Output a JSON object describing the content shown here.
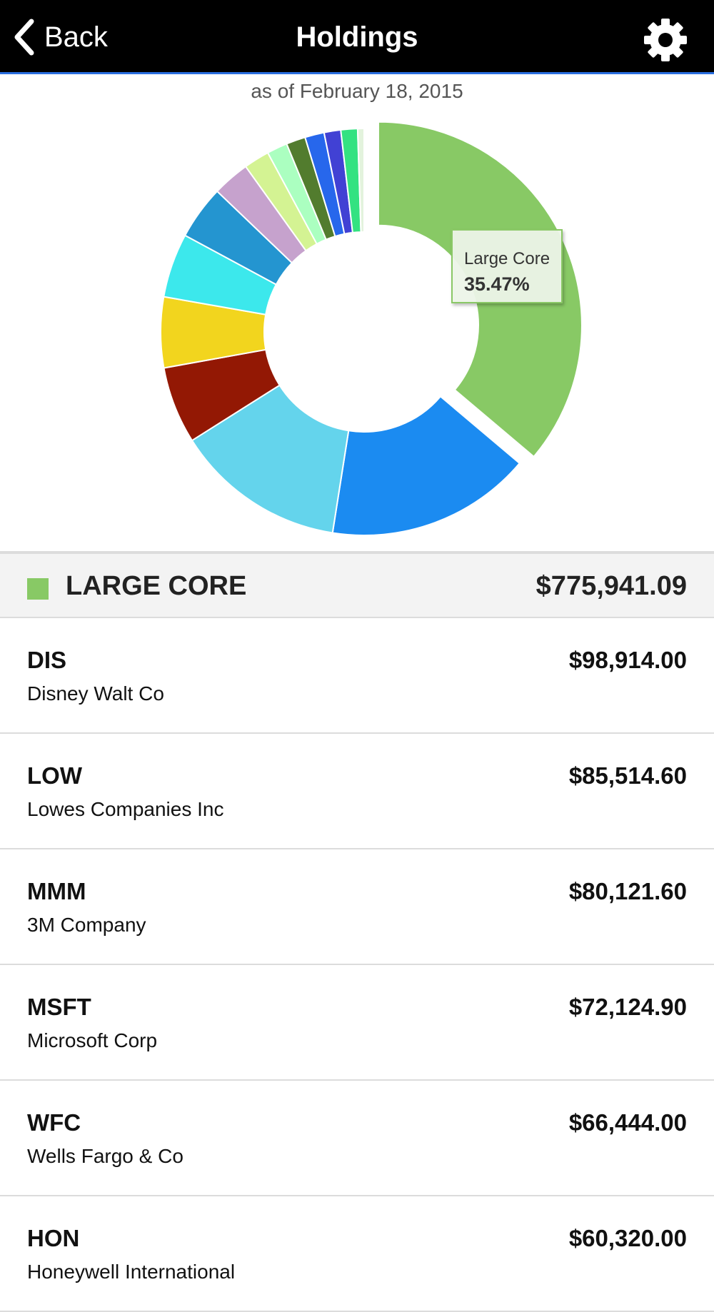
{
  "header": {
    "back_label": "Back",
    "title": "Holdings"
  },
  "as_of": "as of February 18, 2015",
  "tooltip": {
    "label": "Large Core",
    "value": "35.47%"
  },
  "chart_data": {
    "type": "pie",
    "values": [
      35.47,
      16.0,
      13.3,
      6.0,
      5.5,
      5.0,
      4.2,
      2.9,
      2.0,
      1.6,
      1.5,
      1.5,
      1.3,
      1.3,
      0.5
    ],
    "colors": [
      "#88c965",
      "#1b8bf1",
      "#64d4ec",
      "#931804",
      "#f2d51e",
      "#3ce8ec",
      "#2495d0",
      "#c6a2cd",
      "#d4f393",
      "#abffc0",
      "#527c2e",
      "#2767ec",
      "#4141d4",
      "#33e281",
      "#e3f3dd"
    ],
    "highlighted": 0
  },
  "group": {
    "color": "#88c965",
    "name": "LARGE CORE",
    "total": "$775,941.09"
  },
  "holdings": [
    {
      "symbol": "DIS",
      "name": "Disney Walt Co",
      "value": "$98,914.00"
    },
    {
      "symbol": "LOW",
      "name": "Lowes Companies Inc",
      "value": "$85,514.60"
    },
    {
      "symbol": "MMM",
      "name": "3M Company",
      "value": "$80,121.60"
    },
    {
      "symbol": "MSFT",
      "name": "Microsoft Corp",
      "value": "$72,124.90"
    },
    {
      "symbol": "WFC",
      "name": "Wells Fargo & Co",
      "value": "$66,444.00"
    },
    {
      "symbol": "HON",
      "name": "Honeywell International",
      "value": "$60,320.00"
    }
  ]
}
